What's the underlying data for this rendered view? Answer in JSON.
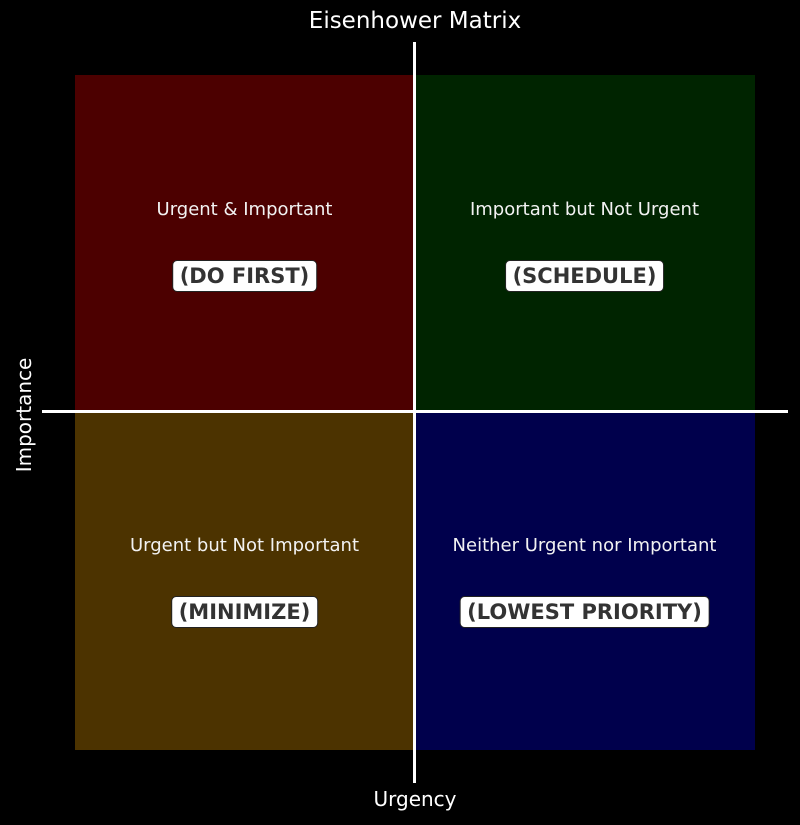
{
  "title": "Eisenhower Matrix",
  "xlabel": "Urgency",
  "ylabel": "Importance",
  "quadrants": [
    {
      "label": "Urgent & Important",
      "action": "(DO FIRST)",
      "color": "#4c0000"
    },
    {
      "label": "Important but Not Urgent",
      "action": "(SCHEDULE)",
      "color": "#002400"
    },
    {
      "label": "Urgent but Not Important",
      "action": "(MINIMIZE)",
      "color": "#4c3300"
    },
    {
      "label": "Neither Urgent nor Important",
      "action": "(LOWEST PRIORITY)",
      "color": "#00004c"
    }
  ],
  "background": "#000000",
  "axis_line_color": "#ffffff"
}
